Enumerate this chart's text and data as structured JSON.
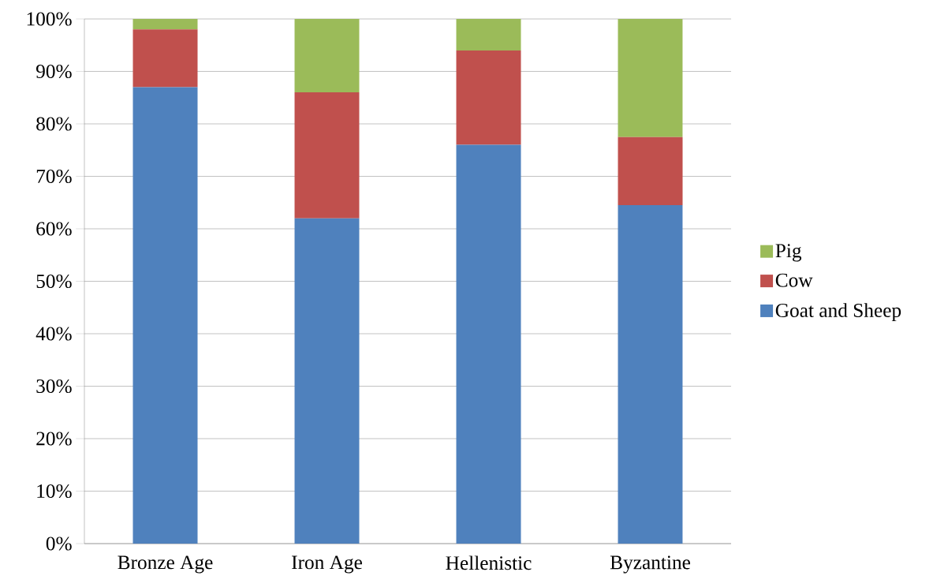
{
  "chart_data": {
    "type": "bar",
    "stacked": true,
    "categories": [
      "Bronze Age",
      "Iron Age",
      "Hellenistic",
      "Byzantine"
    ],
    "series": [
      {
        "name": "Goat and Sheep",
        "color": "#4f81bd",
        "values": [
          87,
          62,
          76,
          64.5
        ]
      },
      {
        "name": "Cow",
        "color": "#c0504d",
        "values": [
          11,
          24,
          18,
          13
        ]
      },
      {
        "name": "Pig",
        "color": "#9bbb59",
        "values": [
          2,
          14,
          6,
          22.5
        ]
      }
    ],
    "ylim": [
      0,
      100
    ],
    "yticks": [
      {
        "value": 0,
        "label": "0%"
      },
      {
        "value": 10,
        "label": "10%"
      },
      {
        "value": 20,
        "label": "20%"
      },
      {
        "value": 30,
        "label": "30%"
      },
      {
        "value": 40,
        "label": "40%"
      },
      {
        "value": 50,
        "label": "50%"
      },
      {
        "value": 60,
        "label": "60%"
      },
      {
        "value": 70,
        "label": "70%"
      },
      {
        "value": 80,
        "label": "80%"
      },
      {
        "value": 90,
        "label": "90%"
      },
      {
        "value": 100,
        "label": "100%"
      }
    ],
    "grid": "y",
    "legend": "right"
  }
}
